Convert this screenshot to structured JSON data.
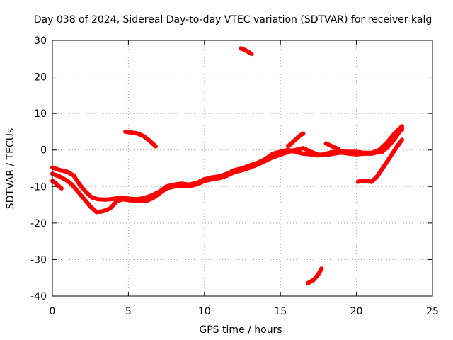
{
  "chart_data": {
    "type": "scatter",
    "title": "Day 038 of 2024, Sidereal Day-to-day VTEC variation (SDTVAR) for receiver kalg",
    "xlabel": "GPS time / hours",
    "ylabel": "SDTVAR / TECUs",
    "xlim": [
      0,
      25
    ],
    "ylim": [
      -40,
      30
    ],
    "xticks": [
      0,
      5,
      10,
      15,
      20,
      25
    ],
    "yticks": [
      -40,
      -30,
      -20,
      -10,
      0,
      10,
      20,
      30
    ],
    "grid": true,
    "series_color": "#ff0000",
    "series": [
      {
        "name": "main-upper",
        "points": [
          [
            0.0,
            -4.8
          ],
          [
            0.5,
            -5.5
          ],
          [
            1.0,
            -6.0
          ],
          [
            1.4,
            -7.0
          ],
          [
            1.8,
            -9.5
          ],
          [
            2.2,
            -11.5
          ],
          [
            2.6,
            -13.0
          ],
          [
            3.0,
            -13.5
          ],
          [
            3.5,
            -13.6
          ],
          [
            4.0,
            -13.4
          ],
          [
            4.5,
            -13.0
          ],
          [
            5.0,
            -13.3
          ],
          [
            5.5,
            -13.5
          ],
          [
            6.0,
            -13.2
          ],
          [
            6.5,
            -12.5
          ],
          [
            7.0,
            -11.5
          ],
          [
            7.5,
            -10.0
          ],
          [
            8.0,
            -9.5
          ],
          [
            8.5,
            -9.2
          ],
          [
            9.0,
            -9.5
          ],
          [
            9.5,
            -9.0
          ],
          [
            10.0,
            -8.0
          ],
          [
            10.5,
            -7.5
          ],
          [
            11.0,
            -7.2
          ],
          [
            11.5,
            -6.5
          ],
          [
            12.0,
            -5.5
          ],
          [
            12.5,
            -5.0
          ],
          [
            13.0,
            -4.2
          ],
          [
            13.5,
            -3.5
          ],
          [
            14.0,
            -2.5
          ],
          [
            14.5,
            -1.0
          ],
          [
            15.0,
            -0.5
          ],
          [
            15.5,
            0.0
          ],
          [
            16.0,
            -0.5
          ],
          [
            16.5,
            -1.0
          ],
          [
            17.0,
            -1.2
          ],
          [
            17.5,
            -1.5
          ],
          [
            18.0,
            -1.0
          ],
          [
            18.5,
            -0.5
          ],
          [
            19.0,
            -0.3
          ],
          [
            19.5,
            -0.5
          ],
          [
            20.0,
            -0.5
          ],
          [
            20.5,
            -0.8
          ],
          [
            21.0,
            -0.8
          ],
          [
            21.5,
            0.0
          ],
          [
            22.0,
            2.0
          ],
          [
            22.5,
            4.5
          ],
          [
            23.0,
            6.5
          ]
        ]
      },
      {
        "name": "main-lower",
        "points": [
          [
            0.0,
            -6.5
          ],
          [
            0.5,
            -7.3
          ],
          [
            1.0,
            -8.5
          ],
          [
            1.3,
            -9.5
          ],
          [
            1.7,
            -11.5
          ],
          [
            2.1,
            -13.5
          ],
          [
            2.5,
            -15.5
          ],
          [
            2.9,
            -17.0
          ],
          [
            3.3,
            -16.8
          ],
          [
            3.8,
            -16.0
          ],
          [
            4.2,
            -14.2
          ],
          [
            4.6,
            -13.5
          ],
          [
            5.0,
            -13.7
          ],
          [
            5.6,
            -14.0
          ],
          [
            6.2,
            -13.9
          ],
          [
            6.6,
            -13.2
          ],
          [
            7.0,
            -12.0
          ],
          [
            7.5,
            -10.5
          ],
          [
            8.0,
            -10.0
          ],
          [
            8.5,
            -9.8
          ],
          [
            9.0,
            -9.9
          ],
          [
            9.5,
            -9.4
          ],
          [
            10.0,
            -8.5
          ],
          [
            10.5,
            -8.0
          ],
          [
            11.0,
            -7.7
          ],
          [
            11.5,
            -7.0
          ],
          [
            12.0,
            -6.0
          ],
          [
            12.5,
            -5.5
          ],
          [
            13.0,
            -4.8
          ],
          [
            13.5,
            -4.0
          ],
          [
            14.0,
            -3.0
          ],
          [
            14.5,
            -2.0
          ],
          [
            15.0,
            -1.3
          ],
          [
            15.5,
            -0.5
          ],
          [
            16.0,
            0.0
          ],
          [
            16.5,
            0.5
          ],
          [
            17.0,
            -0.5
          ],
          [
            17.5,
            -1.3
          ],
          [
            18.0,
            -1.4
          ],
          [
            18.5,
            -1.0
          ],
          [
            19.0,
            -0.7
          ],
          [
            19.5,
            -1.0
          ],
          [
            20.0,
            -1.2
          ],
          [
            20.5,
            -1.0
          ],
          [
            21.0,
            -1.0
          ],
          [
            21.5,
            -0.5
          ],
          [
            22.0,
            0.5
          ],
          [
            22.5,
            3.0
          ],
          [
            23.0,
            6.0
          ]
        ]
      },
      {
        "name": "early-spike",
        "points": [
          [
            0.0,
            -8.5
          ],
          [
            0.2,
            -9.0
          ],
          [
            0.4,
            -9.8
          ],
          [
            0.6,
            -10.5
          ]
        ]
      },
      {
        "name": "mid-segment",
        "points": [
          [
            4.8,
            5.0
          ],
          [
            5.2,
            4.8
          ],
          [
            5.6,
            4.5
          ],
          [
            6.0,
            3.8
          ],
          [
            6.4,
            2.5
          ],
          [
            6.8,
            1.0
          ]
        ]
      },
      {
        "name": "high-segment",
        "points": [
          [
            12.4,
            27.8
          ],
          [
            12.7,
            27.3
          ],
          [
            13.1,
            26.3
          ]
        ]
      },
      {
        "name": "low-segment",
        "points": [
          [
            16.8,
            -36.5
          ],
          [
            17.2,
            -35.5
          ],
          [
            17.5,
            -34.0
          ],
          [
            17.7,
            -32.5
          ]
        ]
      },
      {
        "name": "rising-segment",
        "points": [
          [
            15.5,
            1.0
          ],
          [
            15.9,
            2.5
          ],
          [
            16.3,
            4.0
          ],
          [
            16.5,
            4.5
          ]
        ]
      },
      {
        "name": "late-bump",
        "points": [
          [
            18.0,
            1.8
          ],
          [
            18.4,
            1.0
          ],
          [
            18.8,
            0.3
          ]
        ]
      },
      {
        "name": "late-rise",
        "points": [
          [
            20.1,
            -8.7
          ],
          [
            20.5,
            -8.4
          ],
          [
            21.0,
            -8.7
          ],
          [
            21.4,
            -7.0
          ],
          [
            21.8,
            -4.5
          ],
          [
            22.2,
            -2.0
          ],
          [
            22.6,
            0.5
          ],
          [
            23.0,
            2.8
          ]
        ]
      },
      {
        "name": "late-branch",
        "points": [
          [
            21.7,
            -0.5
          ],
          [
            22.0,
            1.0
          ],
          [
            22.4,
            3.0
          ],
          [
            22.8,
            5.0
          ],
          [
            23.0,
            5.5
          ]
        ]
      }
    ]
  }
}
